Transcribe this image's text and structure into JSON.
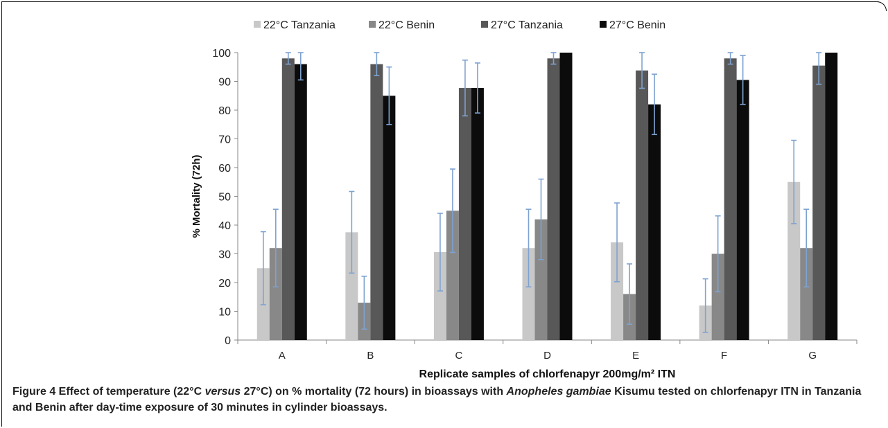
{
  "caption": {
    "label": "Figure 4",
    "t1": " Effect of temperature (22°C ",
    "i1": "versus",
    "t2": " 27°C) on % mortality (72 hours) in bioassays with ",
    "i2": "Anopheles gambiae",
    "t3": " Kisumu tested on chlorfenapyr ITN in Tanzania and Benin after day-time exposure of 30 minutes in cylinder bioassays."
  },
  "colors": {
    "series": [
      "#c8c8c8",
      "#888888",
      "#585858",
      "#0c0c0c"
    ],
    "error_bar": "#7ea2d0",
    "axis": "#878787"
  },
  "chart_data": {
    "type": "bar",
    "title": "",
    "xlabel": "Replicate samples of chlorfenapyr 200mg/m² ITN",
    "ylabel": "% Mortality (72h)",
    "ylim": [
      0,
      100
    ],
    "yticks": [
      0,
      10,
      20,
      30,
      40,
      50,
      60,
      70,
      80,
      90,
      100
    ],
    "grid": false,
    "legend_position": "top",
    "categories": [
      "A",
      "B",
      "C",
      "D",
      "E",
      "F",
      "G"
    ],
    "series": [
      {
        "name": "22°C Tanzania",
        "values": [
          25,
          37.5,
          30.6,
          32,
          34,
          12,
          55
        ],
        "errors": [
          12.7,
          14.2,
          13.5,
          13.5,
          13.7,
          9.3,
          14.5
        ]
      },
      {
        "name": "22°C Benin",
        "values": [
          32,
          13,
          45,
          42,
          16,
          30,
          32
        ],
        "errors": [
          13.5,
          9.2,
          14.5,
          14,
          10.5,
          13.2,
          13.5
        ]
      },
      {
        "name": "27°C Tanzania",
        "values": [
          98,
          96,
          87.7,
          98,
          93.8,
          98,
          95.5
        ],
        "errors": [
          2,
          4,
          9.7,
          2,
          6.2,
          2,
          6.5
        ]
      },
      {
        "name": "27°C Benin",
        "values": [
          96,
          85,
          87.7,
          100,
          82,
          90.5,
          100
        ],
        "errors": [
          5.5,
          10,
          8.7,
          0,
          10.5,
          8.5,
          0
        ]
      }
    ]
  }
}
